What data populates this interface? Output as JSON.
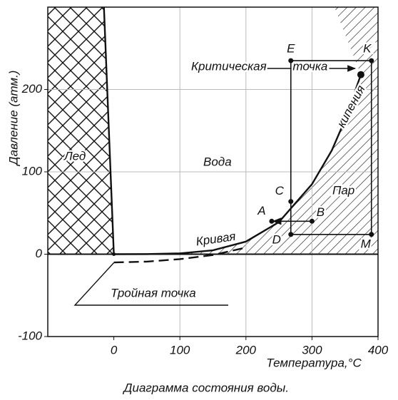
{
  "chart_data": {
    "type": "line",
    "caption": "Диаграмма состояния воды.",
    "xlabel": "Температура,°C",
    "ylabel": "Давление (атм.)",
    "xlim": [
      -100,
      400
    ],
    "ylim": [
      -100,
      300
    ],
    "xticks": [
      0,
      100,
      200,
      300,
      400
    ],
    "yticks": [
      -100,
      0,
      100,
      200
    ],
    "grid": true,
    "series": [
      {
        "color": "#111",
        "style": "solid",
        "x": [
          0,
          50,
          100,
          150,
          200,
          250,
          300,
          330,
          350,
          374
        ],
        "y": [
          0,
          0.1,
          1,
          4.7,
          15.3,
          39,
          85,
          126,
          163,
          218
        ]
      },
      {
        "color": "#111",
        "style": "dashed",
        "x": [
          0,
          50,
          100,
          150,
          200
        ],
        "y": [
          -10,
          -9,
          -6,
          -1,
          8
        ]
      },
      {
        "color": "#111",
        "style": "solid",
        "x": [
          0,
          -15
        ],
        "y": [
          0,
          300
        ]
      }
    ],
    "critical_point": {
      "label": "Критическая точка",
      "x": 374,
      "y": 218
    },
    "triple_point": {
      "label": "Тройная точка",
      "x": 0,
      "y": 0
    },
    "curve_label": [
      "Кривая",
      "кипения"
    ],
    "regions": {
      "ice": "Лед",
      "water": "Вода",
      "vapor": "Пар"
    },
    "points": [
      {
        "label": "E",
        "x": 268,
        "y": 235
      },
      {
        "label": "K",
        "x": 390,
        "y": 235
      },
      {
        "label": "M",
        "x": 390,
        "y": 24
      },
      {
        "label": "D",
        "x": 268,
        "y": 24
      },
      {
        "label": "C",
        "x": 268,
        "y": 64
      },
      {
        "label": "A",
        "x": 239,
        "y": 40
      },
      {
        "label": "B",
        "x": 300,
        "y": 40
      }
    ]
  }
}
